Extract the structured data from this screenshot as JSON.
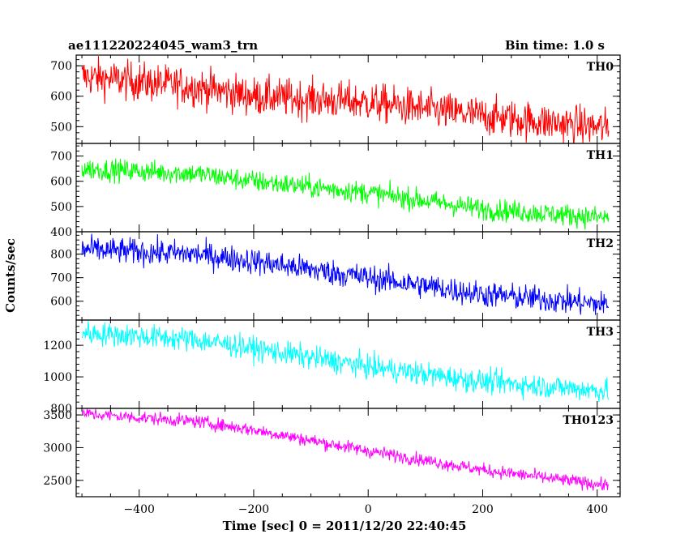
{
  "header": {
    "title": "ae111220224045_wam3_trn",
    "bin_time": "Bin time: 1.0 s"
  },
  "axes": {
    "ylabel": "Counts/sec",
    "xlabel": "Time [sec] 0 = 2011/12/20 22:40:45"
  },
  "chart_data": {
    "type": "line",
    "x_range": [
      -500,
      420
    ],
    "xlim": [
      -510,
      440
    ],
    "x_ticks": [
      -400,
      -200,
      0,
      200,
      400
    ],
    "x_tick_labels": [
      "−400",
      "−200",
      "0",
      "200",
      "400"
    ],
    "series": [
      {
        "name": "TH0",
        "color": "#ff0000",
        "ylim": [
          445,
          735
        ],
        "y_ticks": [
          500,
          600,
          700
        ],
        "y_tick_labels": [
          "500",
          "600",
          "700"
        ],
        "trend": [
          [
            -500,
            665
          ],
          [
            -300,
            630
          ],
          [
            -200,
            600
          ],
          [
            0,
            580
          ],
          [
            200,
            535
          ],
          [
            420,
            495
          ]
        ],
        "noise": 32
      },
      {
        "name": "TH1",
        "color": "#00ff00",
        "ylim": [
          400,
          750
        ],
        "y_ticks": [
          400,
          500,
          600,
          700
        ],
        "y_tick_labels": [
          "400",
          "500",
          "600",
          "700"
        ],
        "trend": [
          [
            -500,
            650
          ],
          [
            -300,
            630
          ],
          [
            -200,
            600
          ],
          [
            0,
            555
          ],
          [
            200,
            490
          ],
          [
            420,
            455
          ]
        ],
        "noise": 22
      },
      {
        "name": "TH2",
        "color": "#0000ff",
        "ylim": [
          520,
          895
        ],
        "y_ticks": [
          600,
          700,
          800
        ],
        "y_tick_labels": [
          "600",
          "700",
          "800"
        ],
        "trend": [
          [
            -500,
            820
          ],
          [
            -300,
            800
          ],
          [
            -200,
            770
          ],
          [
            0,
            700
          ],
          [
            200,
            630
          ],
          [
            420,
            585
          ]
        ],
        "noise": 28
      },
      {
        "name": "TH3",
        "color": "#00ffff",
        "ylim": [
          800,
          1360
        ],
        "y_ticks": [
          800,
          1000,
          1200
        ],
        "y_tick_labels": [
          "800",
          "1000",
          "1200"
        ],
        "trend": [
          [
            -500,
            1280
          ],
          [
            -300,
            1235
          ],
          [
            -200,
            1180
          ],
          [
            0,
            1065
          ],
          [
            200,
            970
          ],
          [
            420,
            910
          ]
        ],
        "noise": 38
      },
      {
        "name": "TH0123",
        "color": "#ff00ff",
        "ylim": [
          2250,
          3600
        ],
        "y_ticks": [
          2500,
          3000,
          3500
        ],
        "y_tick_labels": [
          "2500",
          "3000",
          "3500"
        ],
        "trend": [
          [
            -500,
            3520
          ],
          [
            -300,
            3400
          ],
          [
            -200,
            3270
          ],
          [
            0,
            2950
          ],
          [
            200,
            2660
          ],
          [
            420,
            2420
          ]
        ],
        "noise": 50
      }
    ]
  }
}
